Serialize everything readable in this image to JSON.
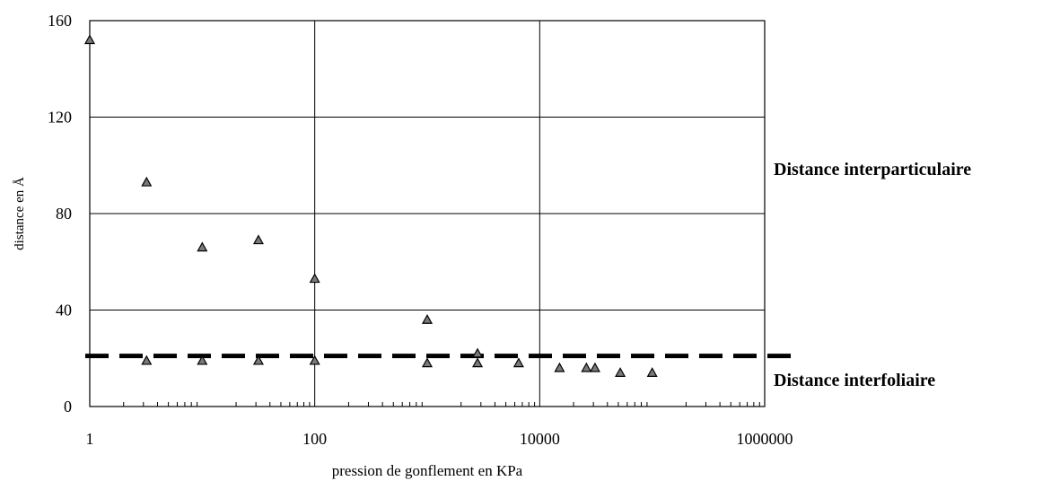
{
  "chart_data": {
    "type": "scatter",
    "xscale": "log",
    "xlabel": "pression de gonflement en KPa",
    "ylabel": "distance en Å",
    "xlim": [
      1,
      1000000
    ],
    "ylim": [
      0,
      160
    ],
    "x_ticks": [
      1,
      100,
      10000,
      1000000
    ],
    "x_tick_labels": [
      "1",
      "100",
      "10000",
      "1000000"
    ],
    "y_ticks": [
      0,
      40,
      80,
      120,
      160
    ],
    "y_tick_labels": [
      "0",
      "40",
      "80",
      "120",
      "160"
    ],
    "grid": true,
    "marker": "triangle",
    "points": [
      {
        "x": 1,
        "y": 152
      },
      {
        "x": 3.2,
        "y": 93
      },
      {
        "x": 3.2,
        "y": 19
      },
      {
        "x": 10,
        "y": 66
      },
      {
        "x": 10,
        "y": 19
      },
      {
        "x": 31.6,
        "y": 69
      },
      {
        "x": 31.6,
        "y": 19
      },
      {
        "x": 100,
        "y": 53
      },
      {
        "x": 100,
        "y": 19
      },
      {
        "x": 1000,
        "y": 36
      },
      {
        "x": 1000,
        "y": 18
      },
      {
        "x": 2800,
        "y": 22
      },
      {
        "x": 2800,
        "y": 18
      },
      {
        "x": 6500,
        "y": 18
      },
      {
        "x": 15000,
        "y": 16
      },
      {
        "x": 26000,
        "y": 16
      },
      {
        "x": 31000,
        "y": 16
      },
      {
        "x": 52000,
        "y": 14
      },
      {
        "x": 100000,
        "y": 14
      }
    ],
    "reference_line": {
      "y": 21,
      "style": "dashed"
    },
    "annotations": {
      "upper": "Distance interparticulaire",
      "lower": "Distance interfoliaire"
    }
  }
}
